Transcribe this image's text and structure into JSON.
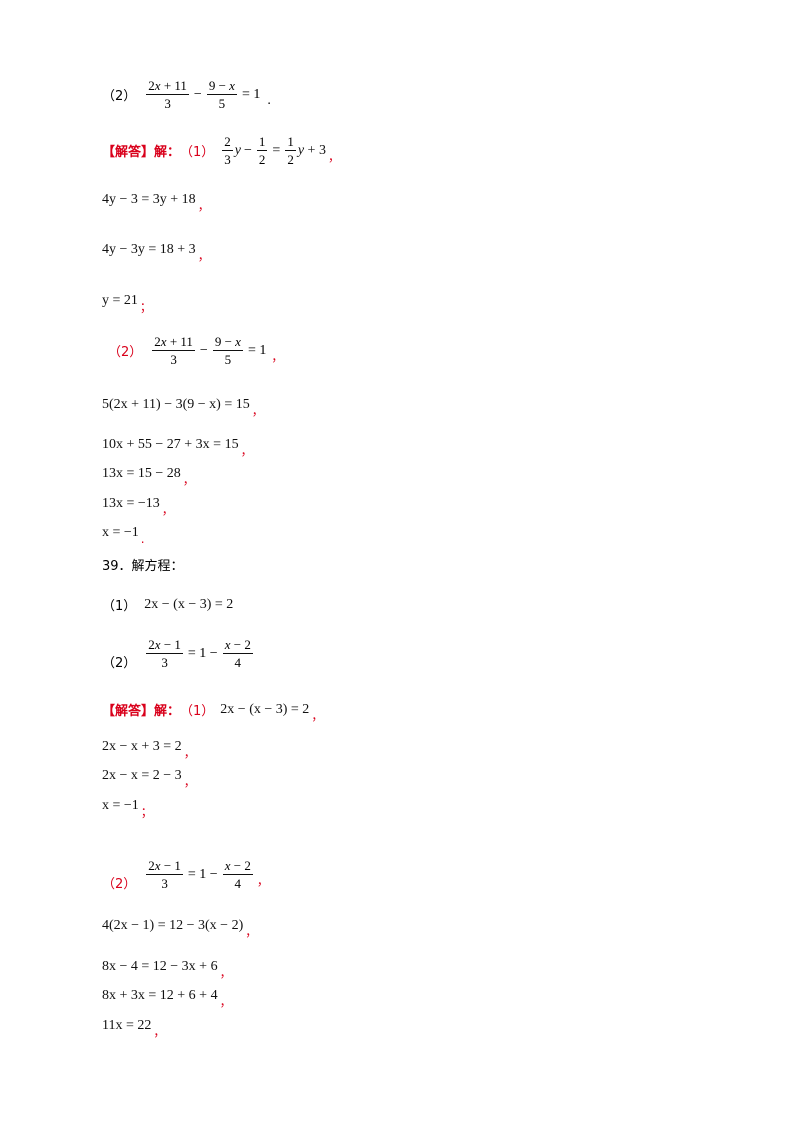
{
  "colors": {
    "accent_red": "#d9001b",
    "text": "#000000",
    "background": "#ffffff"
  },
  "items": {
    "p2_label": "（2）",
    "jieda1": "【解答】解：",
    "jieda1_part1": "（1）",
    "s1_step1": "4y − 3 = 3y + 18",
    "s1_step2": "4y − 3y = 18 + 3",
    "s1_step3": "y = 21",
    "s2_label": "（2）",
    "s2_step1": "5(2x + 11) − 3(9 − x) = 15",
    "s2_step2": "10x + 55 − 27 + 3x = 15",
    "s2_step3": "13x = 15 − 28",
    "s2_step4": "13x = −13",
    "s2_step5": "x = −1",
    "q39_title": "39．解方程：",
    "q39_p1_label": "（1）",
    "q39_p1_eq": "2x − (x − 3) = 2",
    "q39_p2_label": "（2）",
    "jieda2": "【解答】解：",
    "jieda2_part1": "（1）",
    "jieda2_eq": "2x − (x − 3) = 2",
    "a1_step1": "2x − x + 3 = 2",
    "a1_step2": "2x − x = 2 − 3",
    "a1_step3": "x = −1",
    "a2_label": "（2）",
    "a2_step1": "4(2x − 1) = 12 − 3(x − 2)",
    "a2_step2": "8x − 4 = 12 − 3x + 6",
    "a2_step3": "8x + 3x = 12 + 6 + 4",
    "a2_step4": "11x = 22",
    "comma": "，",
    "semicolon": "；",
    "period": "."
  }
}
